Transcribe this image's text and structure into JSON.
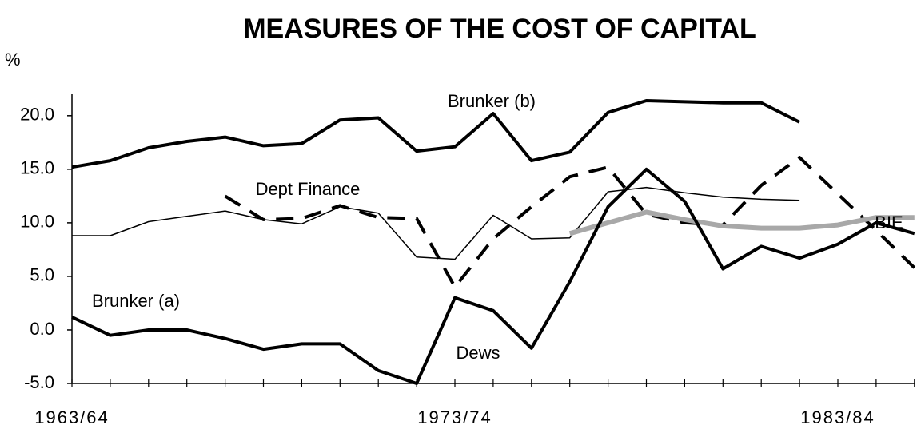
{
  "chart_data": {
    "type": "line",
    "title": "MEASURES OF THE COST OF CAPITAL",
    "y_label": "%",
    "categories": [
      "1963/64",
      null,
      null,
      null,
      null,
      null,
      null,
      null,
      null,
      null,
      "1973/74",
      null,
      null,
      null,
      null,
      null,
      null,
      null,
      null,
      null,
      "1983/84",
      null,
      null
    ],
    "series": [
      {
        "name": "Brunker (b)",
        "color": "#000000",
        "style": "solid",
        "width": 4,
        "values": [
          15.2,
          15.8,
          17.0,
          17.6,
          18.0,
          17.2,
          17.4,
          19.6,
          19.8,
          16.7,
          17.1,
          20.2,
          15.8,
          16.6,
          20.3,
          21.4,
          21.3,
          21.2,
          21.2,
          19.4,
          null,
          null,
          null
        ]
      },
      {
        "name": "Brunker (a)",
        "color": "#000000",
        "style": "solid",
        "width": 1.5,
        "values": [
          8.8,
          8.8,
          10.1,
          10.6,
          11.1,
          10.3,
          9.9,
          11.5,
          10.9,
          6.8,
          6.6,
          10.7,
          8.5,
          8.6,
          12.9,
          13.3,
          12.8,
          12.4,
          12.2,
          12.1,
          null,
          null,
          null
        ]
      },
      {
        "name": "Dept Finance",
        "color": "#000000",
        "style": "dashed",
        "width": 4,
        "values": [
          null,
          null,
          null,
          null,
          12.5,
          10.3,
          10.4,
          11.6,
          10.5,
          10.4,
          4.0,
          8.5,
          11.5,
          14.3,
          15.2,
          10.8,
          10.0,
          9.8,
          13.5,
          16.1,
          12.7,
          9.3,
          5.8
        ]
      },
      {
        "name": "BIE",
        "color": "#a8a8a8",
        "style": "solid",
        "width": 6,
        "values": [
          null,
          null,
          null,
          null,
          null,
          null,
          null,
          null,
          null,
          null,
          null,
          null,
          null,
          9.0,
          10.0,
          11.0,
          10.3,
          9.7,
          9.5,
          9.5,
          9.8,
          10.5,
          10.5
        ]
      },
      {
        "name": "Dews",
        "color": "#000000",
        "style": "solid",
        "width": 4,
        "values": [
          1.2,
          -0.5,
          0.0,
          0.0,
          -0.8,
          -1.8,
          -1.3,
          -1.3,
          -3.8,
          -5.0,
          3.0,
          1.8,
          -1.7,
          4.5,
          11.5,
          15.0,
          12.0,
          5.7,
          7.8,
          6.7,
          8.0,
          10.0,
          9.0
        ]
      }
    ],
    "ylim": [
      -5,
      22
    ],
    "yticks": [
      {
        "value": -5,
        "label": "-5.0"
      },
      {
        "value": 0,
        "label": "0.0"
      },
      {
        "value": 5,
        "label": "5.0"
      },
      {
        "value": 10,
        "label": "10.0"
      },
      {
        "value": 15,
        "label": "15.0"
      },
      {
        "value": 20,
        "label": "20.0"
      }
    ],
    "grid": false
  }
}
